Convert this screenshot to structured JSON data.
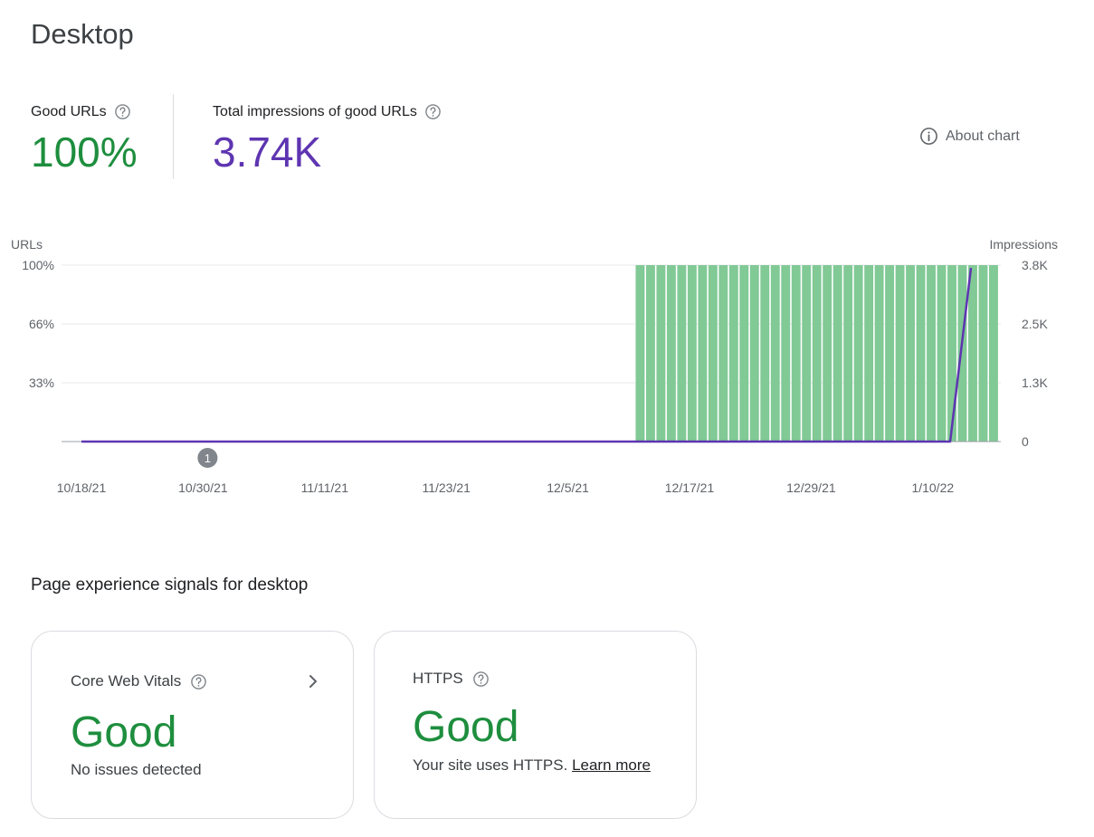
{
  "page": {
    "title": "Desktop"
  },
  "metrics": {
    "good_urls": {
      "label": "Good URLs",
      "value": "100%",
      "color": "#1e8e3e"
    },
    "impressions": {
      "label": "Total impressions of good URLs",
      "value": "3.74K",
      "color": "#5e35b1"
    }
  },
  "about_chart": {
    "label": "About chart"
  },
  "chart_data": {
    "type": "bar",
    "title": "",
    "left_axis_label": "URLs",
    "right_axis_label": "Impressions",
    "left_ticks": [
      "100%",
      "66%",
      "33%"
    ],
    "right_ticks": [
      "3.8K",
      "2.5K",
      "1.3K",
      "0"
    ],
    "left_range": [
      0,
      100
    ],
    "right_range": [
      0,
      3800
    ],
    "x_tick_labels": [
      "10/18/21",
      "10/30/21",
      "11/11/21",
      "11/23/21",
      "12/5/21",
      "12/17/21",
      "12/29/21",
      "1/10/22"
    ],
    "annotation": {
      "label": "1",
      "day_index": 12
    },
    "total_days": 92,
    "series": [
      {
        "name": "Good URLs",
        "type": "bar",
        "unit": "%",
        "color": "#81c995",
        "start_day_index": 57,
        "end_day_index": 91,
        "value": 100
      },
      {
        "name": "Impressions",
        "type": "line",
        "color": "#5e35b1",
        "points": [
          [
            0,
            0
          ],
          [
            88,
            0
          ],
          [
            90,
            3740
          ]
        ]
      }
    ]
  },
  "signals": {
    "title": "Page experience signals for desktop",
    "core_web_vitals": {
      "label": "Core Web Vitals",
      "status": "Good",
      "description": "No issues detected"
    },
    "https": {
      "label": "HTTPS",
      "status": "Good",
      "description": "Your site uses HTTPS.",
      "link_label": "Learn more"
    }
  }
}
